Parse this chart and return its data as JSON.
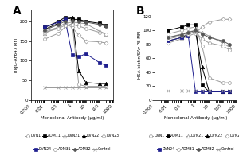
{
  "x": [
    0.01,
    0.1,
    0.3,
    1,
    3,
    10,
    100,
    300
  ],
  "panel_A": {
    "title": "A",
    "ylabel": "hIgG-AF647 MFI",
    "xlabel": "Monoclonal Antibody (μg/ml)",
    "ylim": [
      0,
      230
    ],
    "yticks": [
      0,
      50,
      100,
      150,
      200
    ],
    "series": [
      {
        "name": "DVN1",
        "values": [
          155,
          170,
          185,
          195,
          40,
          35,
          35,
          35
        ],
        "color": "#999999",
        "marker": "o",
        "filled": false
      },
      {
        "name": "ADM11",
        "values": [
          185,
          200,
          210,
          205,
          205,
          200,
          195,
          190
        ],
        "color": "#000000",
        "marker": "s",
        "filled": true
      },
      {
        "name": "DVN21",
        "values": [
          170,
          185,
          195,
          198,
          196,
          194,
          175,
          168
        ],
        "color": "#999999",
        "marker": "^",
        "filled": false
      },
      {
        "name": "DVN22",
        "values": [
          180,
          195,
          205,
          210,
          75,
          45,
          42,
          42
        ],
        "color": "#000000",
        "marker": "^",
        "filled": true
      },
      {
        "name": "DVN23",
        "values": [
          175,
          185,
          195,
          185,
          165,
          150,
          148,
          145
        ],
        "color": "#999999",
        "marker": "D",
        "filled": false
      },
      {
        "name": "DVN24",
        "values": [
          185,
          198,
          205,
          115,
          110,
          118,
          95,
          88
        ],
        "color": "#1f1f8f",
        "marker": "s",
        "filled": true
      },
      {
        "name": "ADM31",
        "values": [
          172,
          182,
          190,
          192,
          188,
          182,
          172,
          168
        ],
        "color": "#999999",
        "marker": "o",
        "filled": false
      },
      {
        "name": "ADM32",
        "values": [
          178,
          192,
          200,
          202,
          200,
          198,
          192,
          188
        ],
        "color": "#555555",
        "marker": "o",
        "filled": true
      },
      {
        "name": "Control",
        "values": [
          32,
          32,
          32,
          32,
          32,
          32,
          32,
          32
        ],
        "color": "#999999",
        "marker": "x",
        "filled": false
      }
    ]
  },
  "panel_B": {
    "title": "B",
    "ylabel": "HSA-biotin/SAv-PE MFI",
    "xlabel": "Monoclonal Antibody (μg/ml)",
    "ylim": [
      0,
      130
    ],
    "yticks": [
      0,
      20,
      40,
      60,
      80,
      100,
      120
    ],
    "series": [
      {
        "name": "DVN1",
        "values": [
          95,
          100,
          103,
          105,
          78,
          32,
          25,
          25
        ],
        "color": "#999999",
        "marker": "o",
        "filled": false
      },
      {
        "name": "ADM11",
        "values": [
          100,
          105,
          108,
          108,
          22,
          12,
          12,
          12
        ],
        "color": "#000000",
        "marker": "s",
        "filled": true
      },
      {
        "name": "DVN21",
        "values": [
          90,
          95,
          98,
          100,
          97,
          92,
          82,
          76
        ],
        "color": "#999999",
        "marker": "^",
        "filled": false
      },
      {
        "name": "DVN22",
        "values": [
          85,
          90,
          95,
          98,
          48,
          12,
          12,
          12
        ],
        "color": "#000000",
        "marker": "^",
        "filled": true
      },
      {
        "name": "DVN23",
        "values": [
          82,
          88,
          92,
          96,
          105,
          112,
          116,
          116
        ],
        "color": "#999999",
        "marker": "D",
        "filled": false
      },
      {
        "name": "DVN24",
        "values": [
          85,
          90,
          92,
          12,
          12,
          12,
          12,
          12
        ],
        "color": "#1f1f8f",
        "marker": "s",
        "filled": true
      },
      {
        "name": "ADM31",
        "values": [
          88,
          92,
          95,
          98,
          88,
          82,
          78,
          72
        ],
        "color": "#999999",
        "marker": "o",
        "filled": false
      },
      {
        "name": "ADM32",
        "values": [
          90,
          94,
          97,
          100,
          95,
          90,
          85,
          80
        ],
        "color": "#555555",
        "marker": "o",
        "filled": true
      },
      {
        "name": "Control",
        "values": [
          14,
          14,
          14,
          14,
          14,
          14,
          14,
          14
        ],
        "color": "#999999",
        "marker": "x",
        "filled": false
      }
    ]
  },
  "legend_rows": [
    [
      "DVN1",
      "ADM11",
      "DVN21",
      "DVN22",
      "DVN23"
    ],
    [
      "DVN24",
      "ADM31",
      "ADM32",
      "Control"
    ]
  ],
  "marker_sizes": {
    "o": 2.8,
    "s": 2.8,
    "^": 3.2,
    "D": 2.5,
    "x": 3.2
  },
  "bg_color": "#f0f0f0"
}
